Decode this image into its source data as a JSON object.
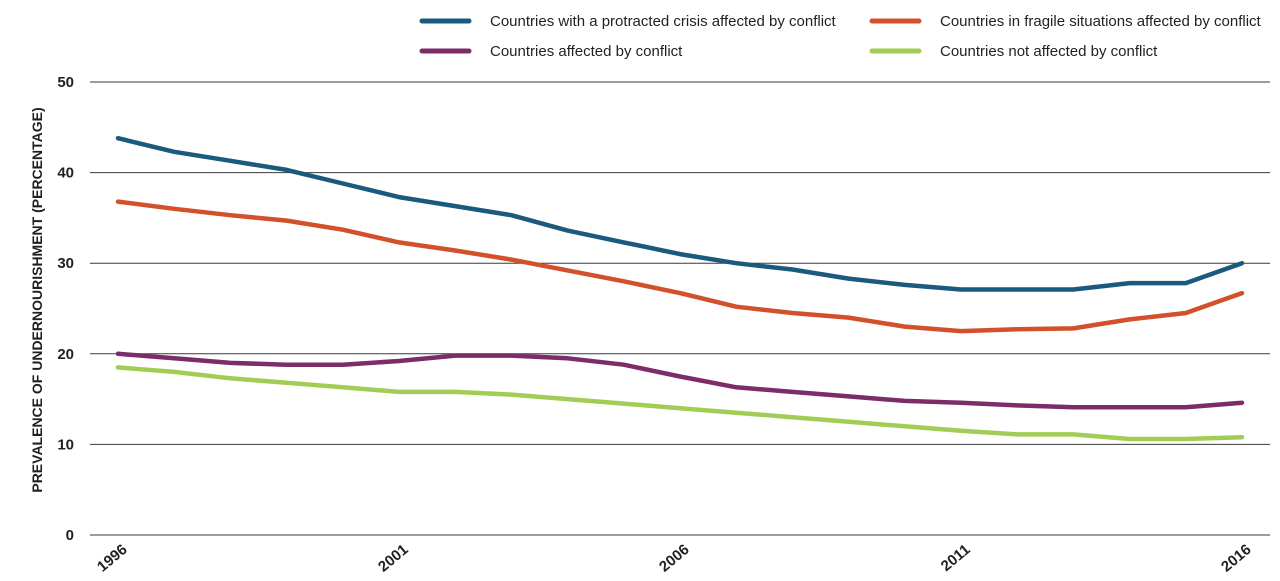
{
  "chart_data": {
    "type": "line",
    "title": "",
    "xlabel": "",
    "ylabel": "PREVALENCE OF UNDERNOURISHMENT (PERCENTAGE)",
    "x": [
      1996,
      1997,
      1998,
      1999,
      2000,
      2001,
      2002,
      2003,
      2004,
      2005,
      2006,
      2007,
      2008,
      2009,
      2010,
      2011,
      2012,
      2013,
      2014,
      2015,
      2016
    ],
    "x_tick_labels": [
      "1996",
      "2001",
      "2006",
      "2011",
      "2016"
    ],
    "y_tick_labels": [
      "0",
      "10",
      "20",
      "30",
      "40",
      "50"
    ],
    "ylim": [
      0,
      50
    ],
    "grid": "horizontal",
    "legend_position": "top-right",
    "series": [
      {
        "name": "Countries with a protracted crisis affected by conflict",
        "color": "#1a5a7e",
        "values": [
          43.8,
          42.3,
          41.3,
          40.3,
          38.8,
          37.3,
          36.3,
          35.3,
          33.6,
          32.3,
          31.0,
          30.0,
          29.3,
          28.3,
          27.6,
          27.1,
          27.1,
          27.1,
          27.8,
          27.8,
          30.0
        ]
      },
      {
        "name": "Countries in fragile situations affected by conflict",
        "color": "#d2502a",
        "values": [
          36.8,
          36.0,
          35.3,
          34.7,
          33.7,
          32.3,
          31.4,
          30.4,
          29.2,
          28.0,
          26.7,
          25.2,
          24.5,
          24.0,
          23.0,
          22.5,
          22.7,
          22.8,
          23.8,
          24.5,
          26.7
        ]
      },
      {
        "name": "Countries affected by conflict",
        "color": "#7b2c69",
        "values": [
          20.0,
          19.5,
          19.0,
          18.8,
          18.8,
          19.2,
          19.8,
          19.8,
          19.5,
          18.8,
          17.5,
          16.3,
          15.8,
          15.3,
          14.8,
          14.6,
          14.3,
          14.1,
          14.1,
          14.1,
          14.6
        ]
      },
      {
        "name": "Countries not affected by conflict",
        "color": "#a3cc55",
        "values": [
          18.5,
          18.0,
          17.3,
          16.8,
          16.3,
          15.8,
          15.8,
          15.5,
          15.0,
          14.5,
          14.0,
          13.5,
          13.0,
          12.5,
          12.0,
          11.5,
          11.1,
          11.1,
          10.6,
          10.6,
          10.8
        ]
      }
    ]
  }
}
